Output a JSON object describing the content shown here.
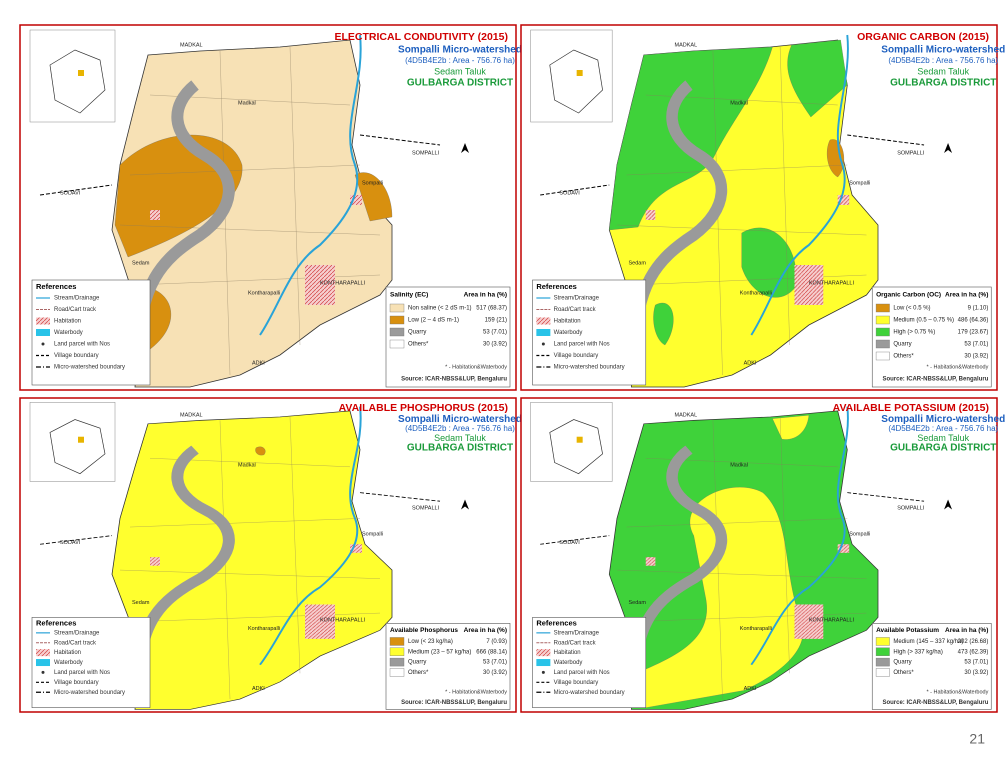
{
  "panels": [
    {
      "title": "ELECTRICAL CONDUTIVITY (2015)",
      "legend_title": "Salinity (EC)",
      "legend_area_header": "Area in ha (%)",
      "legend": [
        {
          "label": "Non saline (< 2 dS m-1)",
          "area": "517 (68.37)",
          "color": "#f7e1b5"
        },
        {
          "label": "Low (2 – 4 dS m-1)",
          "area": "159 (21)",
          "color": "#d8900f"
        },
        {
          "label": "Quarry",
          "area": "53 (7.01)",
          "color": "#9a9a9a"
        },
        {
          "label": "Others*",
          "area": "30 (3.92)",
          "color": "#ffffff"
        }
      ]
    },
    {
      "title": "ORGANIC CARBON (2015)",
      "legend_title": "Organic Carbon (OC)",
      "legend_area_header": "Area in ha (%)",
      "legend": [
        {
          "label": "Low (< 0.5 %)",
          "area": "9 (1.10)",
          "color": "#d8900f"
        },
        {
          "label": "Medium (0.5 – 0.75 %)",
          "area": "486 (64.36)",
          "color": "#ffff2e"
        },
        {
          "label": "High (> 0.75 %)",
          "area": "179 (23.67)",
          "color": "#3fd23a"
        },
        {
          "label": "Quarry",
          "area": "53 (7.01)",
          "color": "#9a9a9a"
        },
        {
          "label": "Others*",
          "area": "30 (3.92)",
          "color": "#ffffff"
        }
      ]
    },
    {
      "title": "AVAILABLE PHOSPHORUS (2015)",
      "legend_title": "Available Phosphorus",
      "legend_area_header": "Area in ha (%)",
      "legend": [
        {
          "label": "Low (< 23 kg/ha)",
          "area": "7 (0.93)",
          "color": "#d8900f"
        },
        {
          "label": "Medium (23 – 57 kg/ha)",
          "area": "666 (88.14)",
          "color": "#ffff2e"
        },
        {
          "label": "Quarry",
          "area": "53 (7.01)",
          "color": "#9a9a9a"
        },
        {
          "label": "Others*",
          "area": "30 (3.92)",
          "color": "#ffffff"
        }
      ]
    },
    {
      "title": "AVAILABLE POTASSIUM (2015)",
      "legend_title": "Available Potassium",
      "legend_area_header": "Area in ha (%)",
      "legend": [
        {
          "label": "Medium (145 – 337 kg/ha)",
          "area": "202 (26.68)",
          "color": "#ffff2e"
        },
        {
          "label": "High (> 337 kg/ha)",
          "area": "473 (62.39)",
          "color": "#3fd23a"
        },
        {
          "label": "Quarry",
          "area": "53 (7.01)",
          "color": "#9a9a9a"
        },
        {
          "label": "Others*",
          "area": "30 (3.92)",
          "color": "#ffffff"
        }
      ]
    }
  ],
  "common": {
    "subtitle": "Sompalli Micro-watershed",
    "area": "(4D5B4E2b : Area - 756.76 ha)",
    "taluk": "Sedam Taluk",
    "district": "GULBARGA DISTRICT",
    "references_title": "References",
    "references": [
      "Stream/Drainage",
      "Road/Cart track",
      "Habitation",
      "Waterbody",
      "Land parcel with Nos",
      "Village boundary",
      "Micro-watershed boundary"
    ],
    "note": "* - Habitation&Waterbody",
    "source": "Source: ICAR-NBSS&LUP, Bengaluru",
    "villages": [
      "MADKAL",
      "SOMPALLI",
      "SODAVI",
      "ADKI",
      "Madkal",
      "Sedam",
      "Sompalli",
      "Kontharapalli",
      "KONTHARAPALLI"
    ]
  },
  "page_number": "21"
}
